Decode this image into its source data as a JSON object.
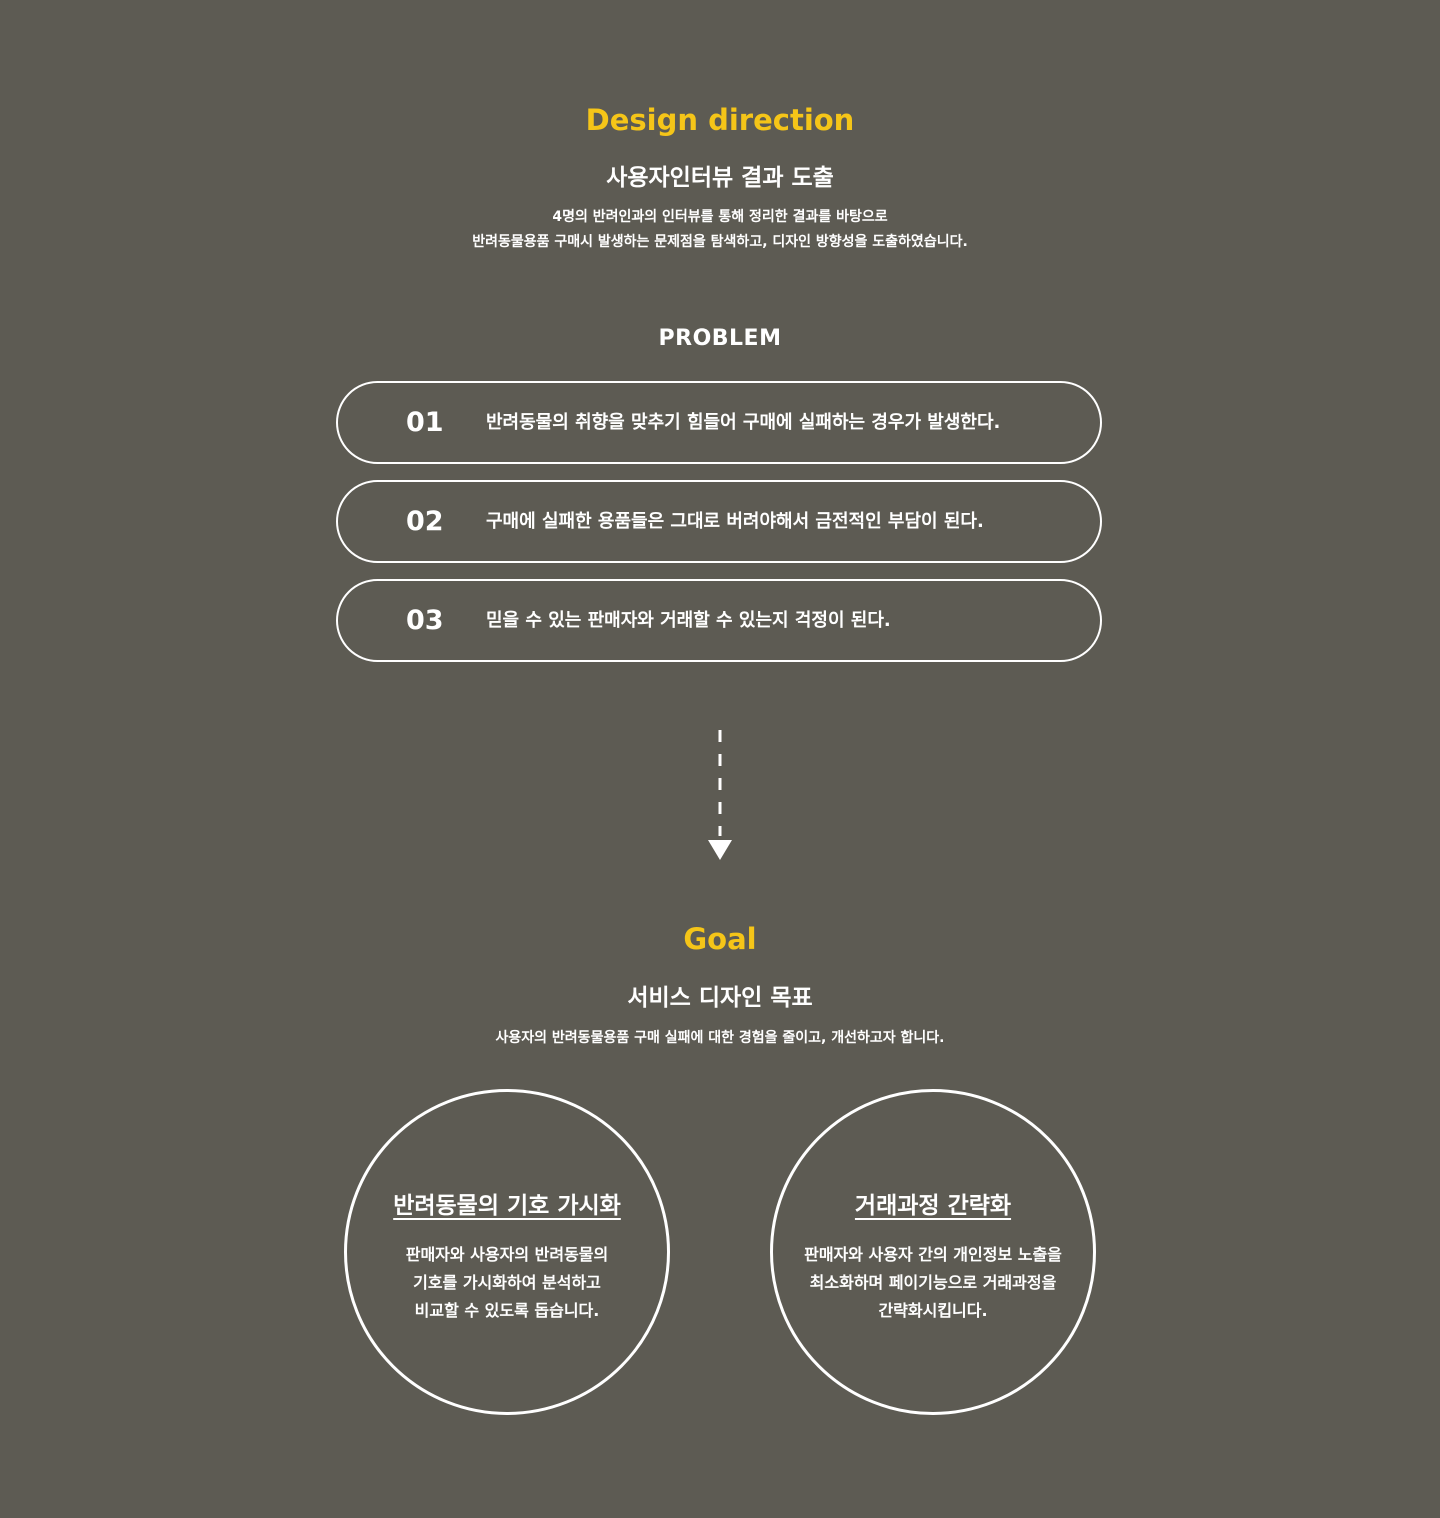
{
  "direction": {
    "eyebrow": "Design direction",
    "title": "사용자인터뷰 결과 도출",
    "desc_lines": [
      "4명의 반려인과의 인터뷰를 통해 정리한 결과를 바탕으로",
      "반려동물용품 구매시 발생하는 문제점을 탐색하고, 디자인 방향성을 도출하였습니다."
    ]
  },
  "problem": {
    "title": "PROBLEM",
    "items": [
      {
        "num": "01",
        "text": "반려동물의 취향을 맞추기 힘들어 구매에 실패하는 경우가 발생한다."
      },
      {
        "num": "02",
        "text": "구매에 실패한 용품들은 그대로 버려야해서 금전적인 부담이 된다."
      },
      {
        "num": "03",
        "text": "믿을 수 있는 판매자와 거래할 수 있는지 걱정이 된다."
      }
    ]
  },
  "arrow_icon": "dashed-down-arrow-icon",
  "goal": {
    "eyebrow": "Goal",
    "title": "서비스 디자인 목표",
    "desc": "사용자의 반려동물용품 구매 실패에 대한 경험을 줄이고, 개선하고자 합니다.",
    "cards": [
      {
        "title": "반려동물의 기호 가시화",
        "lines": [
          "판매자와 사용자의 반려동물의",
          "기호를 가시화하여 분석하고",
          "비교할 수 있도록 돕습니다."
        ]
      },
      {
        "title": "거래과정 간략화",
        "lines": [
          "판매자와 사용자 간의 개인정보 노출을",
          "최소화하며 페이기능으로 거래과정을",
          "간략화시킵니다."
        ]
      }
    ]
  },
  "colors": {
    "background": "#5d5b53",
    "accent": "#f5c518",
    "text": "#ffffff"
  }
}
